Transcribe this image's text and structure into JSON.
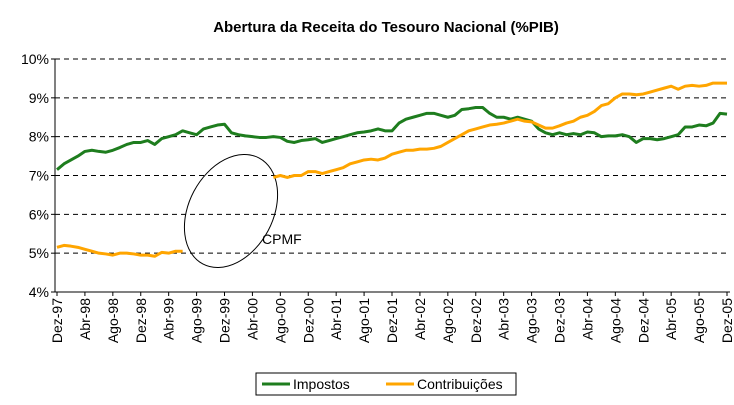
{
  "chart_data": {
    "type": "line",
    "title": "Abertura da Receita do Tesouro Nacional (%PIB)",
    "categories": [
      "Dez-97",
      null,
      null,
      null,
      "Abr-98",
      null,
      null,
      null,
      "Ago-98",
      null,
      null,
      null,
      "Dez-98",
      null,
      null,
      null,
      "Abr-99",
      null,
      null,
      null,
      "Ago-99",
      null,
      null,
      null,
      "Dez-99",
      null,
      null,
      null,
      "Abr-00",
      null,
      null,
      null,
      "Ago-00",
      null,
      null,
      null,
      "Dez-00",
      null,
      null,
      null,
      "Abr-01",
      null,
      null,
      null,
      "Ago-01",
      null,
      null,
      null,
      "Dez-01",
      null,
      null,
      null,
      "Abr-02",
      null,
      null,
      null,
      "Ago-02",
      null,
      null,
      null,
      "Dez-02",
      null,
      null,
      null,
      "Abr-03",
      null,
      null,
      null,
      "Ago-03",
      null,
      null,
      null,
      "Dez-03",
      null,
      null,
      null,
      "Abr-04",
      null,
      null,
      null,
      "Ago-04",
      null,
      null,
      null,
      "Dez-04",
      null,
      null,
      null,
      "Abr-05",
      null,
      null,
      null,
      "Ago-05",
      null,
      null,
      null,
      "Dez-05"
    ],
    "series": [
      {
        "name": "Impostos",
        "color": "#1e7d1e",
        "values": [
          7.15,
          7.3,
          7.4,
          7.5,
          7.62,
          7.65,
          7.62,
          7.6,
          7.65,
          7.72,
          7.8,
          7.85,
          7.85,
          7.9,
          7.8,
          7.95,
          8.0,
          8.05,
          8.15,
          8.1,
          8.05,
          8.2,
          8.25,
          8.3,
          8.32,
          8.1,
          8.05,
          8.02,
          8.0,
          7.98,
          7.98,
          8.0,
          7.98,
          7.88,
          7.85,
          7.9,
          7.92,
          7.95,
          7.85,
          7.9,
          7.95,
          8.0,
          8.05,
          8.1,
          8.12,
          8.15,
          8.2,
          8.15,
          8.15,
          8.35,
          8.45,
          8.5,
          8.55,
          8.6,
          8.6,
          8.55,
          8.5,
          8.55,
          8.7,
          8.72,
          8.75,
          8.75,
          8.6,
          8.5,
          8.5,
          8.45,
          8.5,
          8.45,
          8.4,
          8.2,
          8.1,
          8.05,
          8.1,
          8.05,
          8.08,
          8.05,
          8.12,
          8.1,
          8.0,
          8.02,
          8.02,
          8.05,
          8.0,
          7.85,
          7.95,
          7.95,
          7.92,
          7.95,
          8.0,
          8.05,
          8.25,
          8.25,
          8.3,
          8.28,
          8.35,
          8.6,
          8.58
        ]
      },
      {
        "name": "Contribuições",
        "color": "#ffa500",
        "values": [
          5.15,
          5.2,
          5.18,
          5.15,
          5.1,
          5.05,
          5.0,
          4.98,
          4.95,
          5.0,
          5.0,
          4.98,
          4.95,
          4.95,
          4.92,
          5.02,
          5.0,
          5.05,
          5.05,
          null,
          null,
          null,
          null,
          null,
          null,
          null,
          null,
          null,
          null,
          null,
          null,
          6.95,
          7.0,
          6.95,
          7.0,
          7.0,
          7.1,
          7.1,
          7.05,
          7.1,
          7.15,
          7.2,
          7.3,
          7.35,
          7.4,
          7.42,
          7.4,
          7.45,
          7.55,
          7.6,
          7.65,
          7.65,
          7.68,
          7.68,
          7.7,
          7.75,
          7.85,
          7.95,
          8.05,
          8.15,
          8.2,
          8.25,
          8.3,
          8.32,
          8.35,
          8.4,
          8.45,
          8.4,
          8.38,
          8.3,
          8.22,
          8.22,
          8.28,
          8.35,
          8.4,
          8.5,
          8.55,
          8.65,
          8.8,
          8.85,
          9.0,
          9.1,
          9.1,
          9.08,
          9.1,
          9.15,
          9.2,
          9.25,
          9.3,
          9.22,
          9.3,
          9.32,
          9.3,
          9.32,
          9.38,
          9.38,
          9.38
        ]
      }
    ],
    "ylim": [
      4,
      10
    ],
    "yticks": [
      {
        "value": 4,
        "label": "4%"
      },
      {
        "value": 5,
        "label": "5%"
      },
      {
        "value": 6,
        "label": "6%"
      },
      {
        "value": 7,
        "label": "7%"
      },
      {
        "value": 8,
        "label": "8%"
      },
      {
        "value": 9,
        "label": "9%"
      },
      {
        "value": 10,
        "label": "10%"
      }
    ],
    "grid": true,
    "annotation": "CPMF"
  }
}
